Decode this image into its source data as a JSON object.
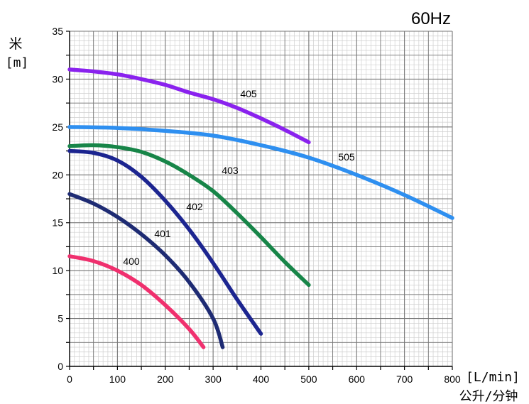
{
  "chart_data": {
    "type": "line",
    "title": "60Hz",
    "ylabel": "米",
    "ylabel_unit": "[m]",
    "xlabel_unit": "[L/min]",
    "xlabel": "公升/分钟",
    "xlim": [
      0,
      800
    ],
    "ylim": [
      0,
      35
    ],
    "x_ticks": [
      0,
      100,
      200,
      300,
      400,
      500,
      600,
      700,
      800
    ],
    "y_ticks": [
      0,
      5,
      10,
      15,
      20,
      25,
      30,
      35
    ],
    "grid": true,
    "legend": "none",
    "series": [
      {
        "name": "400",
        "color": "#f0306e",
        "x": [
          0,
          50,
          100,
          150,
          200,
          250,
          280
        ],
        "y": [
          11.5,
          11.0,
          10.0,
          8.5,
          6.4,
          3.9,
          2.0
        ]
      },
      {
        "name": "401",
        "color": "#1e2b73",
        "x": [
          0,
          50,
          100,
          150,
          200,
          250,
          300,
          320
        ],
        "y": [
          18.0,
          17.0,
          15.6,
          13.8,
          11.6,
          8.8,
          5.0,
          2.0
        ]
      },
      {
        "name": "402",
        "color": "#1c2590",
        "x": [
          0,
          50,
          100,
          150,
          200,
          250,
          300,
          350,
          400
        ],
        "y": [
          22.5,
          22.3,
          21.5,
          19.8,
          17.3,
          14.3,
          10.8,
          7.0,
          3.4
        ]
      },
      {
        "name": "403",
        "color": "#178548",
        "x": [
          0,
          50,
          100,
          150,
          200,
          250,
          300,
          350,
          400,
          450,
          500
        ],
        "y": [
          23.0,
          23.1,
          22.9,
          22.4,
          21.4,
          20.0,
          18.3,
          16.0,
          13.5,
          10.9,
          8.5
        ]
      },
      {
        "name": "405",
        "color": "#8a22ee",
        "x": [
          0,
          50,
          100,
          150,
          200,
          250,
          300,
          350,
          400,
          450,
          500
        ],
        "y": [
          31.0,
          30.8,
          30.5,
          30.0,
          29.4,
          28.6,
          27.9,
          27.0,
          25.9,
          24.7,
          23.4
        ]
      },
      {
        "name": "505",
        "color": "#2e8ff0",
        "x": [
          0,
          100,
          200,
          300,
          400,
          500,
          600,
          700,
          800
        ],
        "y": [
          25.0,
          24.9,
          24.6,
          24.1,
          23.1,
          21.8,
          20.0,
          17.9,
          15.5
        ]
      }
    ],
    "annotations": [
      "400",
      "401",
      "402",
      "403",
      "405",
      "505"
    ]
  }
}
